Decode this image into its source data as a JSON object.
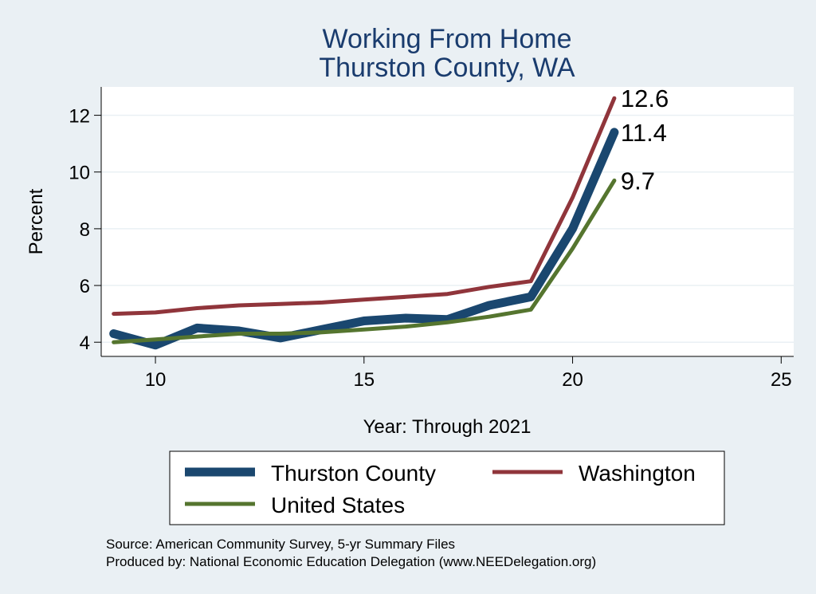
{
  "chart_data": {
    "type": "line",
    "title": "Working From Home",
    "subtitle": "Thurston County, WA",
    "xlabel": "Year: Through 2021",
    "ylabel": "Percent",
    "xlim": [
      8.7,
      25.3
    ],
    "ylim": [
      3.5,
      13.0
    ],
    "xticks": [
      "10",
      "15",
      "20",
      "25"
    ],
    "yticks": [
      "4",
      "6",
      "8",
      "10",
      "12"
    ],
    "grid": true,
    "legend_position": "bottom",
    "series": [
      {
        "name": "Thurston County",
        "color": "#1a476f",
        "x": [
          9,
          10,
          11,
          12,
          13,
          14,
          15,
          16,
          17,
          18,
          19,
          20,
          21
        ],
        "values": [
          4.3,
          3.9,
          4.5,
          4.4,
          4.15,
          4.45,
          4.75,
          4.85,
          4.8,
          5.3,
          5.6,
          8.0,
          11.4
        ],
        "end_label": "11.4"
      },
      {
        "name": "Washington",
        "color": "#90353b",
        "x": [
          9,
          10,
          11,
          12,
          13,
          14,
          15,
          16,
          17,
          18,
          19,
          20,
          21
        ],
        "values": [
          5.0,
          5.05,
          5.2,
          5.3,
          5.35,
          5.4,
          5.5,
          5.6,
          5.7,
          5.95,
          6.15,
          9.1,
          12.6
        ],
        "end_label": "12.6"
      },
      {
        "name": "United States",
        "color": "#55752f",
        "x": [
          9,
          10,
          11,
          12,
          13,
          14,
          15,
          16,
          17,
          18,
          19,
          20,
          21
        ],
        "values": [
          4.0,
          4.1,
          4.2,
          4.3,
          4.3,
          4.35,
          4.45,
          4.55,
          4.7,
          4.9,
          5.15,
          7.3,
          9.7
        ],
        "end_label": "9.7"
      }
    ],
    "notes": [
      "Source: American Community Survey, 5-yr Summary Files",
      "Produced by: National Economic Education Delegation (www.NEEDelegation.org)"
    ]
  }
}
